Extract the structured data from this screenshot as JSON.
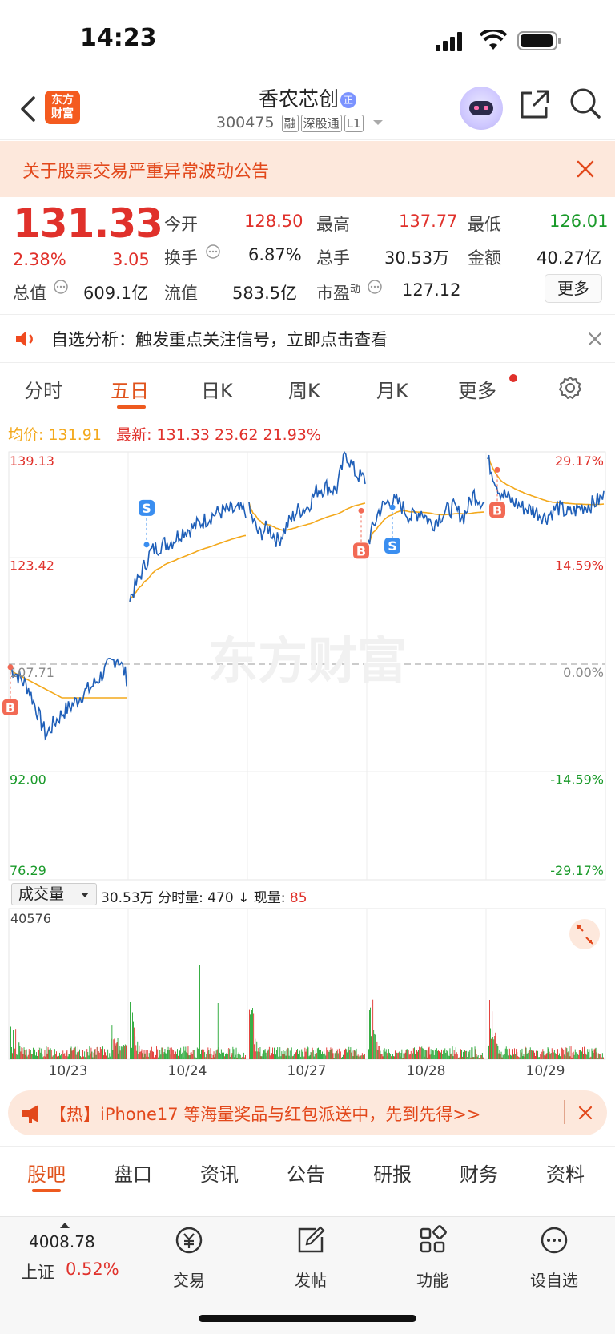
{
  "status_bar": {
    "time": "14:23"
  },
  "header": {
    "logo_line1": "东方",
    "logo_line2": "财富",
    "stock_name": "香农芯创",
    "name_badge": "正",
    "stock_code": "300475",
    "tags": [
      "融",
      "深股通",
      "L1"
    ]
  },
  "notice": {
    "text": "关于股票交易严重异常波动公告"
  },
  "quote": {
    "price": "131.33",
    "change_pct": "2.38%",
    "change": "3.05",
    "open_label": "今开",
    "open": "128.50",
    "high_label": "最高",
    "high": "137.77",
    "low_label": "最低",
    "low": "126.01",
    "turnover_label": "换手",
    "turnover": "6.87%",
    "volume_label": "总手",
    "volume": "30.53万",
    "amount_label": "金额",
    "amount": "40.27亿",
    "mcap_label": "总值",
    "mcap": "609.1亿",
    "float_label": "流值",
    "float": "583.5亿",
    "pe_label": "市盈",
    "pe_sup": "动",
    "pe": "127.12",
    "more": "更多"
  },
  "analysis": {
    "text": "自选分析：触发重点关注信号，立即点击查看"
  },
  "tabs": [
    "分时",
    "五日",
    "日K",
    "周K",
    "月K",
    "更多"
  ],
  "avg_line": {
    "avg_label": "均价:",
    "avg": "131.91",
    "latest_label": "最新:",
    "latest": "131.33",
    "chg": "23.62",
    "chg_pct": "21.93%"
  },
  "chart_data": {
    "type": "line",
    "title": "",
    "watermark": "东方财富",
    "y_labels_left": [
      "139.13",
      "123.42",
      "107.71",
      "92.00",
      "76.29"
    ],
    "y_labels_right": [
      "29.17%",
      "14.59%",
      "0.00%",
      "-14.59%",
      "-29.17%"
    ],
    "ylim": [
      76.29,
      139.13
    ],
    "prev_close": 107.71,
    "days": [
      "10/23",
      "10/24",
      "10/27",
      "10/28",
      "10/29"
    ],
    "series": [
      {
        "values_day1": [
          107.5,
          106.0,
          104.5,
          101.0,
          97.5,
          99.5,
          101.0,
          102.0,
          103.5,
          104.5,
          106.0,
          107.7,
          109.0,
          106.0
        ]
      },
      {
        "values_day2": [
          117.5,
          121.0,
          124.5,
          125.5,
          126.0,
          127.5,
          128.0,
          129.0,
          130.0,
          130.5,
          130.5,
          130.5
        ]
      },
      {
        "values_day3": [
          130.5,
          127.0,
          128.0,
          126.0,
          128.5,
          130.5,
          131.0,
          133.5,
          134.0,
          133.5,
          139.0,
          136.0,
          135.0
        ]
      },
      {
        "values_day4": [
          126.0,
          130.5,
          132.0,
          131.5,
          129.5,
          130.5,
          128.5,
          130.0,
          131.0,
          129.5,
          133.0,
          131.5
        ]
      },
      {
        "values_day5": [
          138.0,
          133.5,
          132.0,
          131.0,
          130.5,
          129.5,
          131.0,
          130.0,
          131.0,
          131.5,
          132.5
        ]
      }
    ],
    "markers": [
      "S",
      "B",
      "B",
      "S",
      "B"
    ]
  },
  "volume": {
    "selector": "成交量",
    "total": "30.53万",
    "tick_label": "分时量:",
    "tick_val": "470",
    "now_label": "现量:",
    "now_val": "85",
    "max_label": "40576"
  },
  "hot": {
    "text": "【热】iPhone17 等海量奖品与红包派送中，先到先得>>"
  },
  "bottom_tabs": [
    "股吧",
    "盘口",
    "资讯",
    "公告",
    "研报",
    "财务",
    "资料"
  ],
  "footer": {
    "index_value": "4008.78",
    "index_name": "上证",
    "index_pct": "0.52%",
    "items": [
      "交易",
      "发帖",
      "功能",
      "设自选"
    ]
  }
}
